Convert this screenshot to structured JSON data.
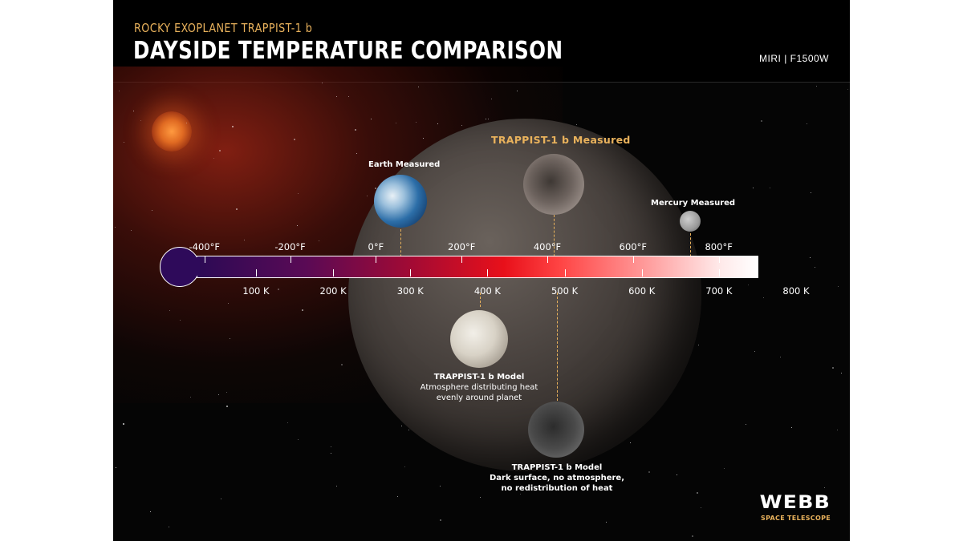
{
  "header": {
    "subtitle": "ROCKY EXOPLANET TRAPPIST-1 b",
    "title": "DAYSIDE TEMPERATURE COMPARISON",
    "instrument": "MIRI | F1500W"
  },
  "planets": {
    "earth": {
      "title": "Earth Measured",
      "temperature_k": 288
    },
    "trappist_measured": {
      "title": "TRAPPIST-1 b Measured",
      "temperature_k": 503
    },
    "mercury": {
      "title": "Mercury Measured",
      "temperature_k": 700
    },
    "model_atmosphere": {
      "title": "TRAPPIST-1 b Model",
      "line1": "Atmosphere distributing heat",
      "line2": "evenly around planet",
      "temperature_k": 400
    },
    "model_dark": {
      "title": "TRAPPIST-1 b Model",
      "line1": "Dark surface, no atmosphere,",
      "line2": "no redistribution of heat",
      "temperature_k": 508
    }
  },
  "scale": {
    "fahrenheit": [
      "-400°F",
      "-200°F",
      "0°F",
      "200°F",
      "400°F",
      "600°F",
      "800°F"
    ],
    "kelvin": [
      "100 K",
      "200 K",
      "300 K",
      "400 K",
      "500 K",
      "600 K",
      "700 K",
      "800 K"
    ]
  },
  "logo": {
    "main": "WEBB",
    "sub": "SPACE TELESCOPE"
  }
}
